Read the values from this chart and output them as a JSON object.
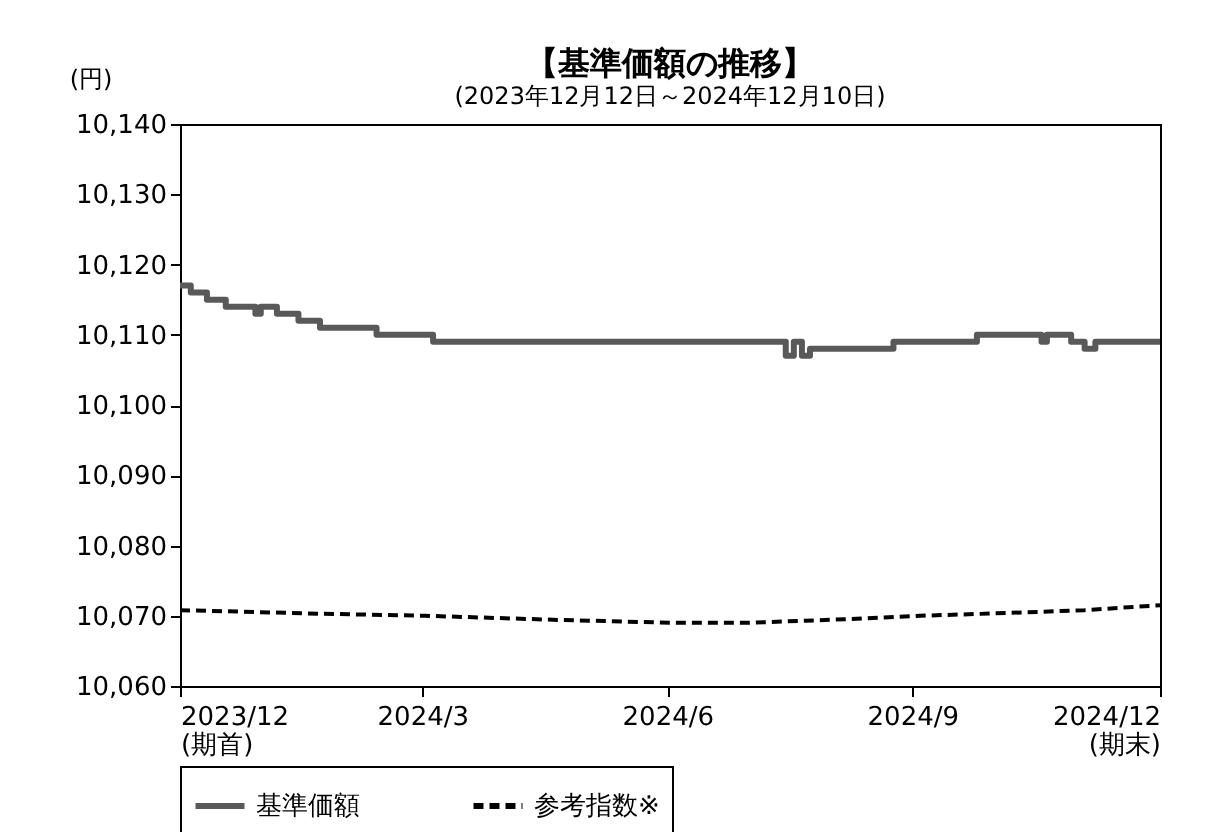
{
  "chart_data": {
    "type": "line",
    "title": "【基準価額の推移】",
    "subtitle": "(2023年12月12日～2024年12月10日)",
    "ylabel": "(円)",
    "xlim": [
      "2023-12-12",
      "2024-12-10"
    ],
    "xticks": [
      {
        "value": "2023-12-12",
        "label": "2023/12\n(期首)"
      },
      {
        "value": "2024-03-11",
        "label": "2024/3"
      },
      {
        "value": "2024-06-10",
        "label": "2024/6"
      },
      {
        "value": "2024-09-09",
        "label": "2024/9"
      },
      {
        "value": "2024-12-10",
        "label": "2024/12\n(期末)"
      }
    ],
    "ylim": [
      10060,
      10140
    ],
    "yticks": [
      {
        "value": 10060,
        "label": "10,060"
      },
      {
        "value": 10070,
        "label": "10,070"
      },
      {
        "value": 10080,
        "label": "10,080"
      },
      {
        "value": 10090,
        "label": "10,090"
      },
      {
        "value": 10100,
        "label": "10,100"
      },
      {
        "value": 10110,
        "label": "10,110"
      },
      {
        "value": 10120,
        "label": "10,120"
      },
      {
        "value": 10130,
        "label": "10,130"
      },
      {
        "value": 10140,
        "label": "10,140"
      }
    ],
    "grid": false,
    "legend": "bottom",
    "marker": "none",
    "series": [
      {
        "name": "基準価額",
        "type": "step",
        "color": "#595959",
        "line_style": "solid",
        "x": [
          "2023-12-12",
          "2023-12-16",
          "2023-12-22",
          "2023-12-29",
          "2024-01-09",
          "2024-01-11",
          "2024-01-17",
          "2024-01-25",
          "2024-02-02",
          "2024-02-23",
          "2024-03-15",
          "2024-07-24",
          "2024-07-27",
          "2024-07-30",
          "2024-08-02",
          "2024-09-02",
          "2024-10-03",
          "2024-10-27",
          "2024-10-29",
          "2024-11-07",
          "2024-11-12",
          "2024-11-16",
          "2024-12-10"
        ],
        "values": [
          10117,
          10116,
          10115,
          10114,
          10113,
          10114,
          10113,
          10112,
          10111,
          10110,
          10109,
          10107,
          10109,
          10107,
          10108,
          10109,
          10110,
          10109,
          10110,
          10109,
          10108,
          10109,
          10109
        ]
      },
      {
        "name": "参考指数※",
        "type": "line",
        "color": "#000000",
        "line_style": "dashed",
        "x": [
          "2023-12-12",
          "2024-02-01",
          "2024-03-12",
          "2024-05-01",
          "2024-06-12",
          "2024-07-10",
          "2024-08-15",
          "2024-09-12",
          "2024-10-15",
          "2024-11-12",
          "2024-12-10"
        ],
        "values": [
          10070.8,
          10070.3,
          10070,
          10069.4,
          10069,
          10069,
          10069.5,
          10070,
          10070.4,
          10070.8,
          10071.5
        ]
      }
    ]
  }
}
